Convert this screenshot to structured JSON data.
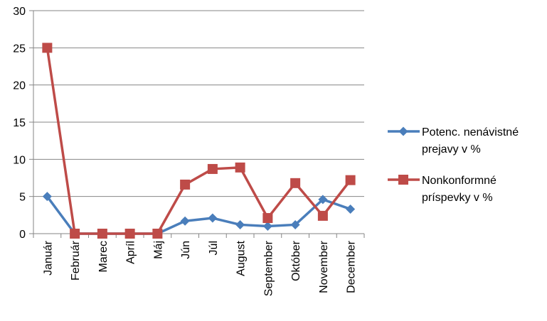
{
  "chart_data": {
    "type": "line",
    "categories": [
      "Január",
      "Február",
      "Marec",
      "Apríl",
      "Máj",
      "Jún",
      "Júl",
      "August",
      "September",
      "Október",
      "November",
      "December"
    ],
    "series": [
      {
        "name": "Potenc. nenávistné prejavy v %",
        "legend_lines": [
          "Potenc. nenávistné",
          "prejavy v %"
        ],
        "color": "#4a7ebb",
        "marker": "diamond",
        "values": [
          5,
          0,
          0,
          0,
          0,
          1.7,
          2.1,
          1.2,
          1.0,
          1.2,
          4.6,
          3.3
        ]
      },
      {
        "name": "Nonkonformné príspevky v %",
        "legend_lines": [
          "Nonkonformné",
          "príspevky v %"
        ],
        "color": "#be4b48",
        "marker": "square",
        "values": [
          25,
          0,
          0,
          0,
          0,
          6.6,
          8.7,
          8.9,
          2.1,
          6.8,
          2.4,
          7.2
        ]
      }
    ],
    "yticks": [
      0,
      5,
      10,
      15,
      20,
      25,
      30
    ],
    "ylim": [
      0,
      30
    ],
    "grid": true,
    "legend_position": "right",
    "title": "",
    "xlabel": "",
    "ylabel": ""
  }
}
